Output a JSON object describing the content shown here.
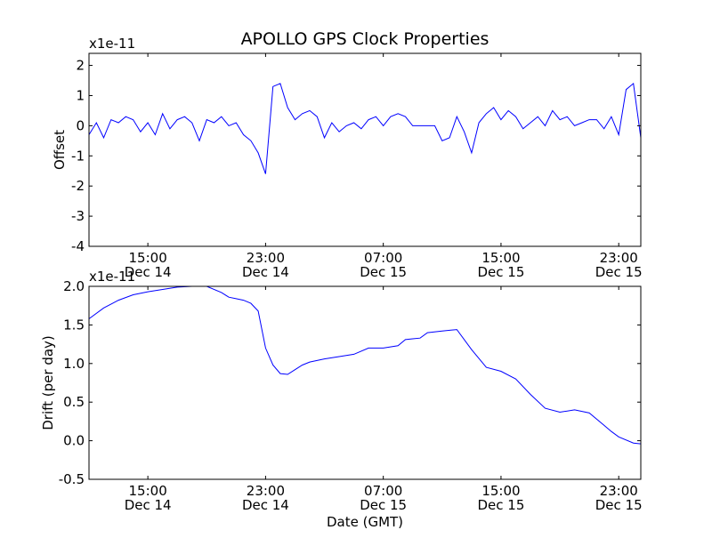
{
  "figure": {
    "title": "APOLLO GPS Clock Properties",
    "background": "#ffffff",
    "line_color": "#0000ff"
  },
  "chart_data": [
    {
      "type": "line",
      "id": "offset",
      "title": "APOLLO GPS Clock Properties",
      "xlabel": "",
      "ylabel": "Offset",
      "y_multiplier_label": "x1e-11",
      "xlim": [
        "2014-12-14T11:00",
        "2014-12-16T00:30"
      ],
      "ylim": [
        -4,
        2.4
      ],
      "yticks": [
        {
          "value": 2,
          "label": "2"
        },
        {
          "value": 1,
          "label": "1"
        },
        {
          "value": 0,
          "label": "0"
        },
        {
          "value": -1,
          "label": "-1"
        },
        {
          "value": -2,
          "label": "-2"
        },
        {
          "value": -3,
          "label": "-3"
        },
        {
          "value": -4,
          "label": "-4"
        }
      ],
      "xticks": [
        {
          "value": "2014-12-14T15:00",
          "time": "15:00",
          "date": "Dec 14"
        },
        {
          "value": "2014-12-14T23:00",
          "time": "23:00",
          "date": "Dec 14"
        },
        {
          "value": "2014-12-15T07:00",
          "time": "07:00",
          "date": "Dec 15"
        },
        {
          "value": "2014-12-15T15:00",
          "time": "15:00",
          "date": "Dec 15"
        },
        {
          "value": "2014-12-15T23:00",
          "time": "23:00",
          "date": "Dec 15"
        }
      ],
      "grid": false,
      "series": [
        {
          "color": "#0000ff",
          "x": [
            "2014-12-14T11:00",
            "2014-12-14T11:30",
            "2014-12-14T12:00",
            "2014-12-14T12:30",
            "2014-12-14T13:00",
            "2014-12-14T13:30",
            "2014-12-14T14:00",
            "2014-12-14T14:30",
            "2014-12-14T15:00",
            "2014-12-14T15:30",
            "2014-12-14T16:00",
            "2014-12-14T16:30",
            "2014-12-14T17:00",
            "2014-12-14T17:30",
            "2014-12-14T18:00",
            "2014-12-14T18:30",
            "2014-12-14T19:00",
            "2014-12-14T19:30",
            "2014-12-14T20:00",
            "2014-12-14T20:30",
            "2014-12-14T21:00",
            "2014-12-14T21:30",
            "2014-12-14T22:00",
            "2014-12-14T22:30",
            "2014-12-14T23:00",
            "2014-12-14T23:30",
            "2014-12-15T00:00",
            "2014-12-15T00:30",
            "2014-12-15T01:00",
            "2014-12-15T01:30",
            "2014-12-15T02:00",
            "2014-12-15T02:30",
            "2014-12-15T03:00",
            "2014-12-15T03:30",
            "2014-12-15T04:00",
            "2014-12-15T04:30",
            "2014-12-15T05:00",
            "2014-12-15T05:30",
            "2014-12-15T06:00",
            "2014-12-15T06:30",
            "2014-12-15T07:00",
            "2014-12-15T07:30",
            "2014-12-15T08:00",
            "2014-12-15T08:30",
            "2014-12-15T09:00",
            "2014-12-15T09:30",
            "2014-12-15T10:00",
            "2014-12-15T10:30",
            "2014-12-15T11:00",
            "2014-12-15T11:30",
            "2014-12-15T12:00",
            "2014-12-15T12:30",
            "2014-12-15T13:00",
            "2014-12-15T13:30",
            "2014-12-15T14:00",
            "2014-12-15T14:30",
            "2014-12-15T15:00",
            "2014-12-15T15:30",
            "2014-12-15T16:00",
            "2014-12-15T16:30",
            "2014-12-15T17:00",
            "2014-12-15T17:30",
            "2014-12-15T18:00",
            "2014-12-15T18:30",
            "2014-12-15T19:00",
            "2014-12-15T19:30",
            "2014-12-15T20:00",
            "2014-12-15T20:30",
            "2014-12-15T21:00",
            "2014-12-15T21:30",
            "2014-12-15T22:00",
            "2014-12-15T22:30",
            "2014-12-15T23:00",
            "2014-12-15T23:30",
            "2014-12-16T00:00",
            "2014-12-16T00:30"
          ],
          "y": [
            -0.3,
            0.1,
            -0.4,
            0.2,
            0.1,
            0.3,
            0.2,
            -0.2,
            0.1,
            -0.3,
            0.4,
            -0.1,
            0.2,
            0.3,
            0.1,
            -0.5,
            0.2,
            0.1,
            0.3,
            0.0,
            0.1,
            -0.3,
            -0.5,
            -0.9,
            -1.6,
            1.3,
            1.4,
            0.6,
            0.2,
            0.4,
            0.5,
            0.3,
            -0.4,
            0.1,
            -0.2,
            0.0,
            0.1,
            -0.1,
            0.2,
            0.3,
            0.0,
            0.3,
            0.4,
            0.3,
            0.0,
            0.0,
            0.0,
            0.0,
            -0.5,
            -0.4,
            0.3,
            -0.2,
            -0.9,
            0.1,
            0.4,
            0.6,
            0.2,
            0.5,
            0.3,
            -0.1,
            0.1,
            0.3,
            0.0,
            0.5,
            0.2,
            0.3,
            0.0,
            0.1,
            0.2,
            0.2,
            -0.1,
            0.3,
            -0.3,
            1.2,
            1.4,
            -0.4
          ]
        }
      ]
    },
    {
      "type": "line",
      "id": "drift",
      "title": "",
      "xlabel": "Date (GMT)",
      "ylabel": "Drift (per day)",
      "y_multiplier_label": "x1e-11",
      "xlim": [
        "2014-12-14T11:00",
        "2014-12-16T00:30"
      ],
      "ylim": [
        -0.5,
        2.0
      ],
      "yticks": [
        {
          "value": 2.0,
          "label": "2.0"
        },
        {
          "value": 1.5,
          "label": "1.5"
        },
        {
          "value": 1.0,
          "label": "1.0"
        },
        {
          "value": 0.5,
          "label": "0.5"
        },
        {
          "value": 0.0,
          "label": "0.0"
        },
        {
          "value": -0.5,
          "label": "-0.5"
        }
      ],
      "xticks": [
        {
          "value": "2014-12-14T15:00",
          "time": "15:00",
          "date": "Dec 14"
        },
        {
          "value": "2014-12-14T23:00",
          "time": "23:00",
          "date": "Dec 14"
        },
        {
          "value": "2014-12-15T07:00",
          "time": "07:00",
          "date": "Dec 15"
        },
        {
          "value": "2014-12-15T15:00",
          "time": "15:00",
          "date": "Dec 15"
        },
        {
          "value": "2014-12-15T23:00",
          "time": "23:00",
          "date": "Dec 15"
        }
      ],
      "grid": false,
      "series": [
        {
          "color": "#0000ff",
          "x": [
            "2014-12-14T11:00",
            "2014-12-14T12:00",
            "2014-12-14T13:00",
            "2014-12-14T14:00",
            "2014-12-14T15:00",
            "2014-12-14T16:00",
            "2014-12-14T17:00",
            "2014-12-14T18:00",
            "2014-12-14T19:00",
            "2014-12-14T20:00",
            "2014-12-14T20:30",
            "2014-12-14T21:00",
            "2014-12-14T21:30",
            "2014-12-14T22:00",
            "2014-12-14T22:30",
            "2014-12-14T23:00",
            "2014-12-14T23:30",
            "2014-12-15T00:00",
            "2014-12-15T00:30",
            "2014-12-15T01:00",
            "2014-12-15T01:30",
            "2014-12-15T02:00",
            "2014-12-15T03:00",
            "2014-12-15T04:00",
            "2014-12-15T05:00",
            "2014-12-15T06:00",
            "2014-12-15T07:00",
            "2014-12-15T08:00",
            "2014-12-15T08:30",
            "2014-12-15T09:00",
            "2014-12-15T09:30",
            "2014-12-15T10:00",
            "2014-12-15T11:00",
            "2014-12-15T12:00",
            "2014-12-15T13:00",
            "2014-12-15T14:00",
            "2014-12-15T15:00",
            "2014-12-15T16:00",
            "2014-12-15T17:00",
            "2014-12-15T18:00",
            "2014-12-15T19:00",
            "2014-12-15T20:00",
            "2014-12-15T21:00",
            "2014-12-15T22:00",
            "2014-12-15T22:30",
            "2014-12-15T23:00",
            "2014-12-16T00:00",
            "2014-12-16T00:30"
          ],
          "y": [
            1.58,
            1.72,
            1.82,
            1.89,
            1.93,
            1.96,
            1.99,
            2.0,
            2.0,
            1.92,
            1.86,
            1.84,
            1.82,
            1.78,
            1.68,
            1.2,
            0.98,
            0.87,
            0.86,
            0.92,
            0.98,
            1.02,
            1.06,
            1.09,
            1.12,
            1.2,
            1.2,
            1.23,
            1.31,
            1.32,
            1.33,
            1.4,
            1.42,
            1.44,
            1.18,
            0.95,
            0.9,
            0.8,
            0.6,
            0.42,
            0.37,
            0.4,
            0.36,
            0.2,
            0.12,
            0.05,
            -0.03,
            -0.04
          ]
        }
      ]
    }
  ]
}
